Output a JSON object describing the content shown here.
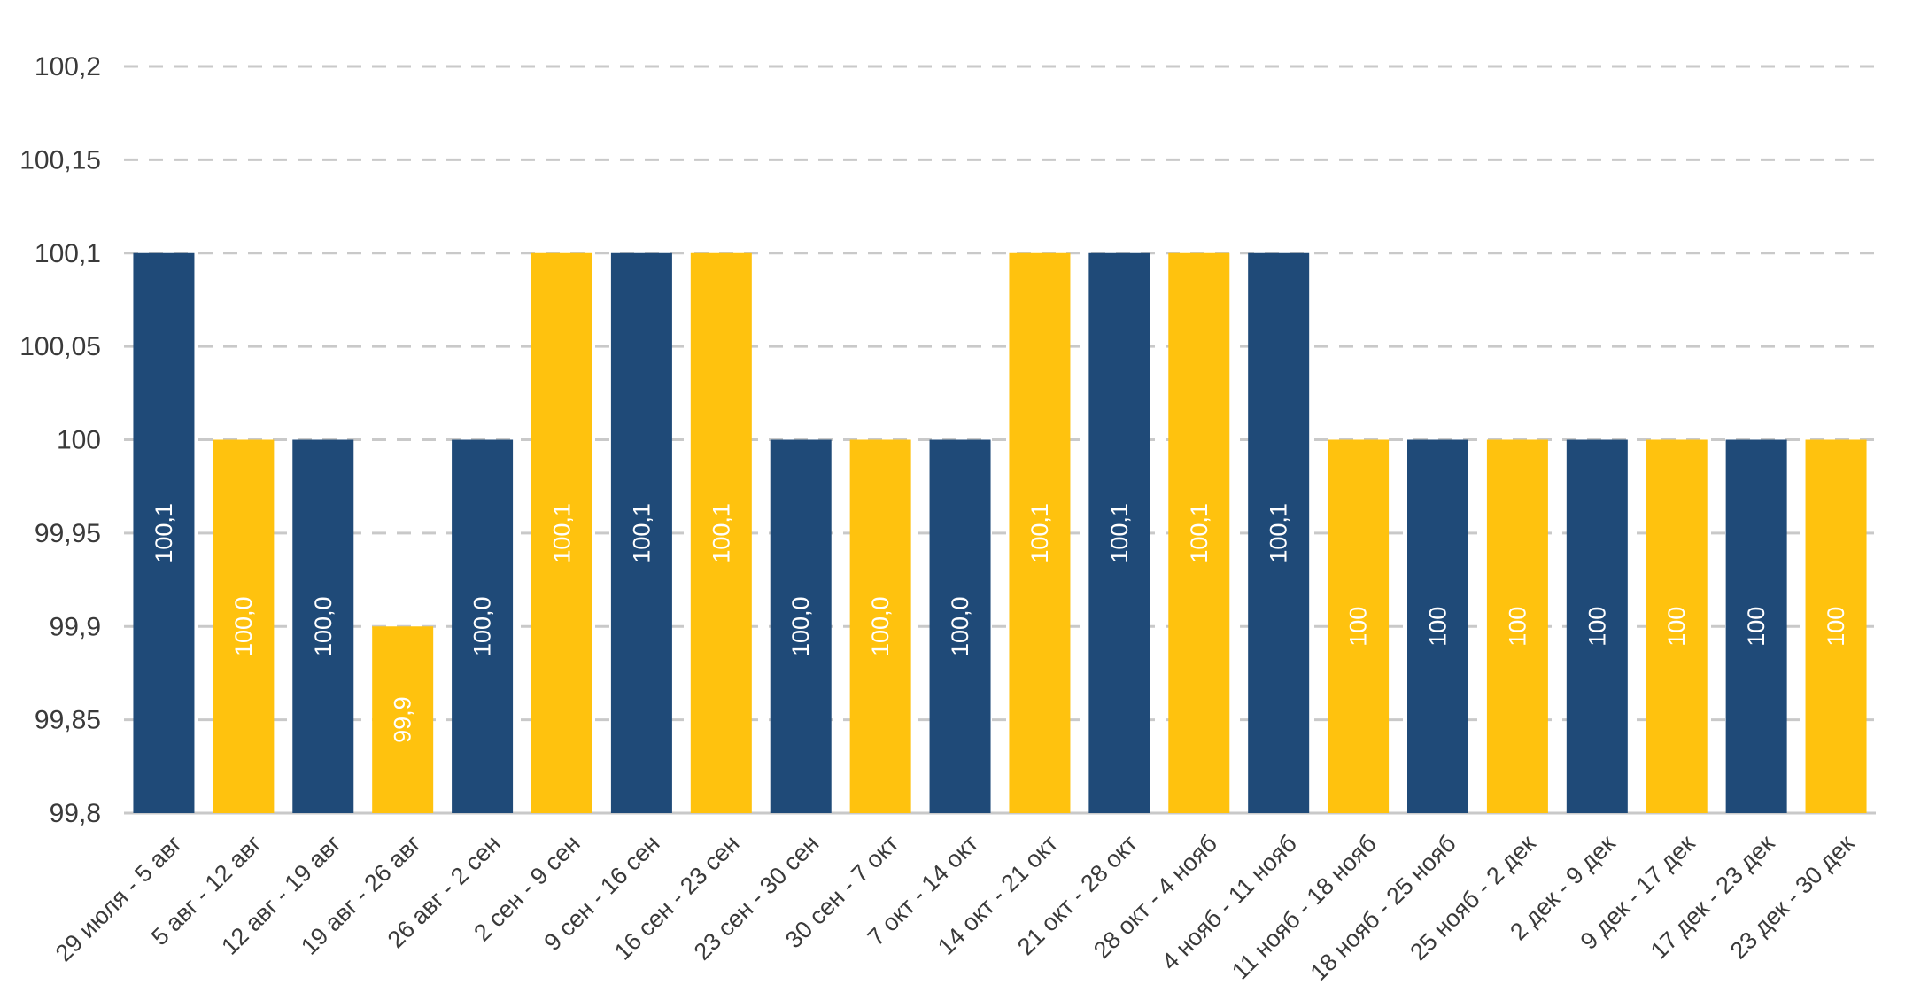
{
  "chart_data": {
    "type": "bar",
    "title": "",
    "xlabel": "",
    "ylabel": "",
    "ylim": [
      99.8,
      100.2
    ],
    "y_ticks": [
      "100,2",
      "100,15",
      "100,1",
      "100,05",
      "100",
      "99,95",
      "99,9",
      "99,85",
      "99,8"
    ],
    "y_tick_values": [
      100.2,
      100.15,
      100.1,
      100.05,
      100,
      99.95,
      99.9,
      99.85,
      99.8
    ],
    "grid": true,
    "legend": "none",
    "colors": {
      "navy": "#1f4a78",
      "yellow": "#ffc20e",
      "grid": "#c9c9c9",
      "text": "#3a3a3a"
    },
    "categories": [
      "29 июля - 5 авг",
      "5 авг - 12 авг",
      "12 авг - 19 авг",
      "19 авг - 26 авг",
      "26 авг - 2 сен",
      "2 сен - 9 сен",
      "9 сен - 16 сен",
      "16 сен - 23 сен",
      "23 сен - 30 сен",
      "30 сен - 7 окт",
      "7 окт - 14 окт",
      "14 окт - 21 окт",
      "21 окт - 28 окт",
      "28 окт - 4 нояб",
      "4 нояб - 11 нояб",
      "11 нояб - 18 нояб",
      "18 нояб - 25 нояб",
      "25 нояб - 2 дек",
      "2 дек - 9 дек",
      "9 дек - 17 дек",
      "17 дек - 23 дек",
      "23 дек - 30 дек"
    ],
    "values": [
      100.1,
      100.0,
      100.0,
      99.9,
      100.0,
      100.1,
      100.1,
      100.1,
      100.0,
      100.0,
      100.0,
      100.1,
      100.1,
      100.1,
      100.1,
      100,
      100,
      100,
      100,
      100,
      100,
      100
    ],
    "data_labels": [
      "100,1",
      "100,0",
      "100,0",
      "99,9",
      "100,0",
      "100,1",
      "100,1",
      "100,1",
      "100,0",
      "100,0",
      "100,0",
      "100,1",
      "100,1",
      "100,1",
      "100,1",
      "100",
      "100",
      "100",
      "100",
      "100",
      "100",
      "100"
    ],
    "bar_colors": [
      "navy",
      "yellow",
      "navy",
      "yellow",
      "navy",
      "yellow",
      "navy",
      "yellow",
      "navy",
      "yellow",
      "navy",
      "yellow",
      "navy",
      "yellow",
      "navy",
      "yellow",
      "navy",
      "yellow",
      "navy",
      "yellow",
      "navy",
      "yellow"
    ]
  }
}
